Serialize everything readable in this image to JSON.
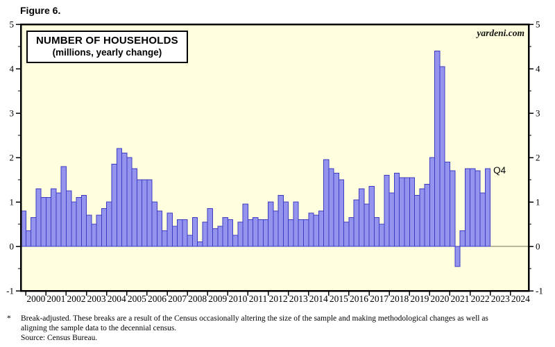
{
  "figure_label": "Figure 6.",
  "watermark": "yardeni.com",
  "chart_data": {
    "type": "bar",
    "title": "NUMBER OF HOUSEHOLDS",
    "subtitle": "(millions, yearly change)",
    "ylim": [
      -1,
      5
    ],
    "y_major_ticks": [
      "-1",
      "0",
      "1",
      "2",
      "3",
      "4",
      "5"
    ],
    "y_minor_tick_step": 0.5,
    "y_axis_sides": "both",
    "x_year_labels": [
      "2000",
      "2001",
      "2002",
      "2003",
      "2004",
      "2005",
      "2006",
      "2007",
      "2008",
      "2009",
      "2010",
      "2011",
      "2012",
      "2013",
      "2014",
      "2015",
      "2016",
      "2017",
      "2018",
      "2019",
      "2020",
      "2021",
      "2022",
      "2023",
      "2024"
    ],
    "grid": "zero line only",
    "legend_position": "none",
    "plot_bg_color": "#ffffe0",
    "bar_color": "#9494ee",
    "bar_border_color": "#3b3bc4",
    "zero_line_color": "#70705a",
    "annotation_last_bar": "Q4",
    "series": [
      {
        "name": "NUMBER OF HOUSEHOLDS (millions, yearly change)",
        "frequency": "quarterly",
        "start_period": "1999Q4",
        "end_period": "2022Q4",
        "values": [
          0.8,
          0.35,
          0.65,
          1.3,
          1.1,
          1.1,
          1.3,
          1.2,
          1.8,
          1.25,
          1.0,
          1.1,
          1.15,
          0.7,
          0.5,
          0.7,
          0.85,
          1.0,
          1.85,
          2.2,
          2.1,
          2.0,
          1.75,
          1.5,
          1.5,
          1.5,
          1.0,
          0.8,
          0.35,
          0.75,
          0.45,
          0.6,
          0.6,
          0.25,
          0.65,
          0.1,
          0.55,
          0.85,
          0.4,
          0.45,
          0.65,
          0.6,
          0.25,
          0.55,
          0.95,
          0.6,
          0.65,
          0.6,
          0.6,
          1.0,
          0.8,
          1.15,
          1.0,
          0.6,
          1.0,
          0.6,
          0.6,
          0.75,
          0.7,
          0.8,
          1.95,
          1.75,
          1.65,
          1.5,
          0.55,
          0.65,
          1.05,
          1.3,
          0.95,
          1.35,
          0.65,
          0.5,
          1.6,
          1.2,
          1.65,
          1.55,
          1.55,
          1.55,
          1.15,
          1.3,
          1.4,
          2.0,
          4.4,
          4.05,
          1.9,
          1.7,
          -0.45,
          0.35,
          1.75,
          1.75,
          1.7,
          1.2,
          1.75
        ]
      }
    ]
  },
  "footnote": {
    "marker": "*",
    "lines": [
      "Break-adjusted. These breaks are a result of the Census occasionally altering the size of the sample and making methodological changes as well as",
      "aligning the sample data to the decennial census.",
      "Source: Census Bureau."
    ]
  }
}
